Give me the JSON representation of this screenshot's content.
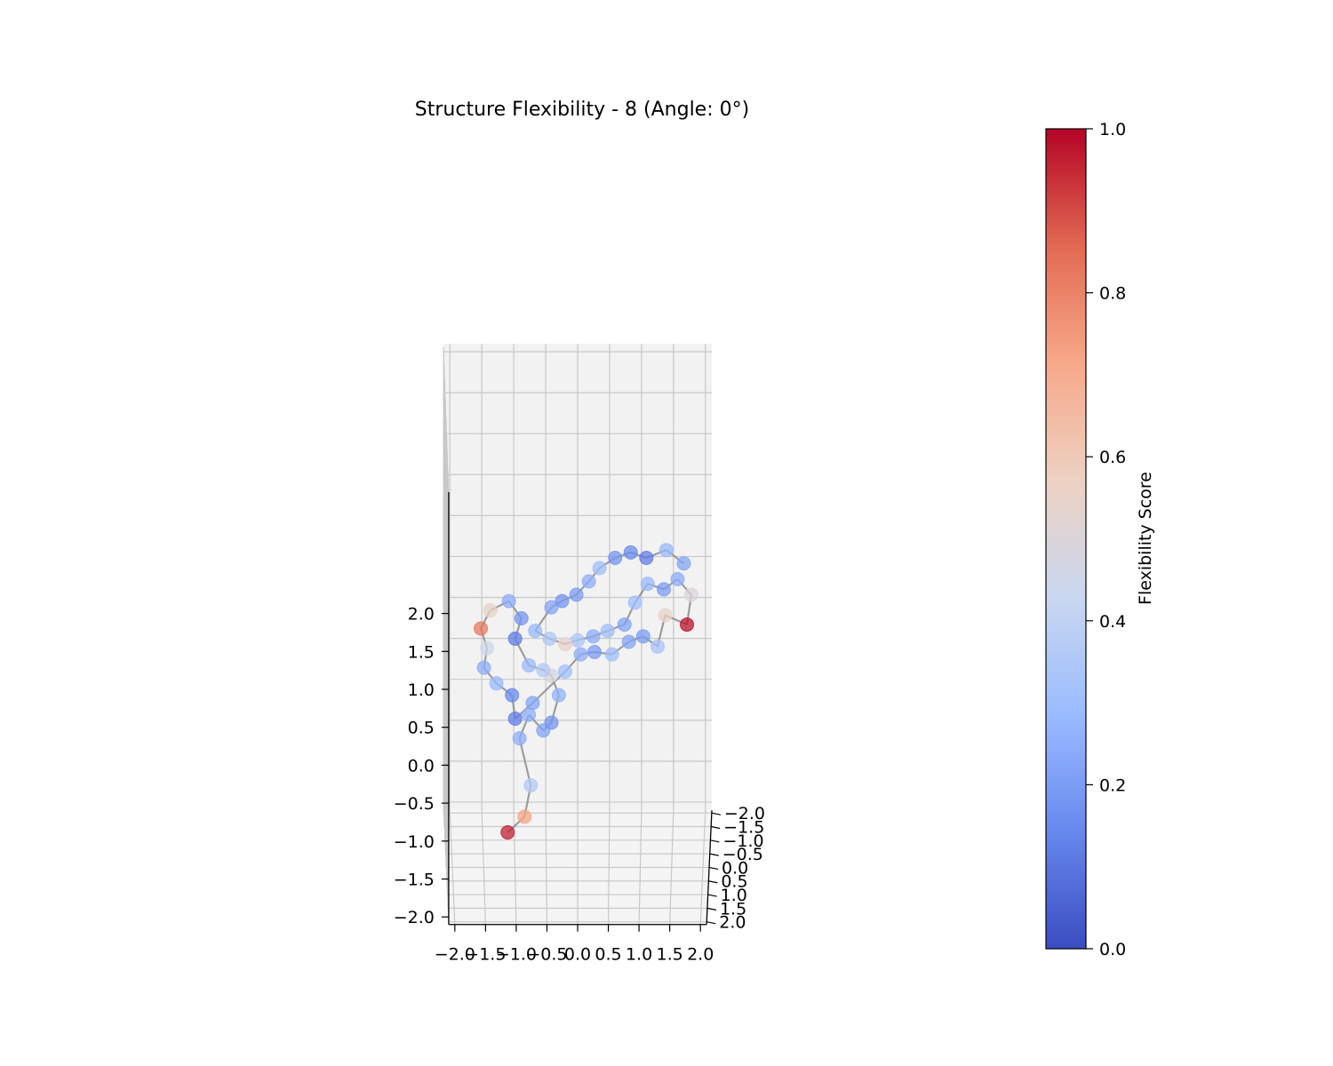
{
  "chart_data": {
    "type": "scatter",
    "projection": "3d",
    "title": "Structure Flexibility - 8 (Angle: 0°)",
    "xlabel": "",
    "ylabel": "",
    "zlabel": "",
    "xlim": [
      -2.0,
      2.0
    ],
    "ylim": [
      -2.0,
      2.0
    ],
    "zlim": [
      -2.0,
      2.0
    ],
    "x_ticks": [
      "−2.0",
      "−1.5",
      "−1.0",
      "−0.5",
      "0.0",
      "0.5",
      "1.0",
      "1.5",
      "2.0"
    ],
    "y_ticks": [
      "−2.0",
      "−1.5",
      "−1.0",
      "−0.5",
      "0.0",
      "0.5",
      "1.0",
      "1.5",
      "2.0"
    ],
    "z_ticks": [
      "−2.0",
      "−1.5",
      "−1.0",
      "−0.5",
      "0.0",
      "0.5",
      "1.0",
      "1.5",
      "2.0"
    ],
    "grid": true,
    "points_connected_in_sequence": true,
    "colormap": "coolwarm",
    "colorbar": {
      "label": "Flexibility Score",
      "range": [
        0.0,
        1.0
      ],
      "ticks": [
        "0.0",
        "0.2",
        "0.4",
        "0.6",
        "0.8",
        "1.0"
      ],
      "colors": [
        "#3b4cc0",
        "#6788ee",
        "#9abbff",
        "#c9d7f0",
        "#edd1c2",
        "#f7a889",
        "#e26952",
        "#b40426"
      ]
    },
    "points": [
      {
        "x": -1.12,
        "y": 0.3,
        "z": -1.55,
        "flex": 0.96
      },
      {
        "x": -0.85,
        "y": 0.3,
        "z": -1.35,
        "flex": 0.72
      },
      {
        "x": -0.75,
        "y": 0.3,
        "z": -0.95,
        "flex": 0.36
      },
      {
        "x": -0.93,
        "y": 0.3,
        "z": -0.35,
        "flex": 0.25
      },
      {
        "x": -0.78,
        "y": 0.3,
        "z": -0.05,
        "flex": 0.25
      },
      {
        "x": -0.55,
        "y": 0.3,
        "z": -0.25,
        "flex": 0.22
      },
      {
        "x": -0.42,
        "y": 0.3,
        "z": -0.15,
        "flex": 0.18
      },
      {
        "x": -0.3,
        "y": 0.3,
        "z": 0.2,
        "flex": 0.26
      },
      {
        "x": -0.42,
        "y": 0.3,
        "z": 0.45,
        "flex": 0.48
      },
      {
        "x": -0.55,
        "y": 0.3,
        "z": 0.52,
        "flex": 0.36
      },
      {
        "x": -0.78,
        "y": 0.3,
        "z": 0.58,
        "flex": 0.28
      },
      {
        "x": -1.0,
        "y": 0.3,
        "z": 0.92,
        "flex": 0.12
      },
      {
        "x": -0.9,
        "y": 0.3,
        "z": 1.18,
        "flex": 0.18
      },
      {
        "x": -1.1,
        "y": 0.3,
        "z": 1.4,
        "flex": 0.25
      },
      {
        "x": -1.4,
        "y": 0.3,
        "z": 1.28,
        "flex": 0.55
      },
      {
        "x": -1.55,
        "y": 0.3,
        "z": 1.05,
        "flex": 0.82
      },
      {
        "x": -1.45,
        "y": 0.3,
        "z": 0.8,
        "flex": 0.45
      },
      {
        "x": -1.5,
        "y": 0.3,
        "z": 0.55,
        "flex": 0.25
      },
      {
        "x": -1.3,
        "y": 0.3,
        "z": 0.35,
        "flex": 0.28
      },
      {
        "x": -1.05,
        "y": 0.3,
        "z": 0.2,
        "flex": 0.15
      },
      {
        "x": -1.0,
        "y": 0.3,
        "z": -0.1,
        "flex": 0.12
      },
      {
        "x": -0.72,
        "y": 0.3,
        "z": 0.1,
        "flex": 0.22
      },
      {
        "x": -0.2,
        "y": 0.3,
        "z": 0.5,
        "flex": 0.3
      },
      {
        "x": 0.05,
        "y": 0.3,
        "z": 0.72,
        "flex": 0.25
      },
      {
        "x": 0.27,
        "y": 0.3,
        "z": 0.75,
        "flex": 0.2
      },
      {
        "x": 0.55,
        "y": 0.3,
        "z": 0.72,
        "flex": 0.3
      },
      {
        "x": 0.82,
        "y": 0.3,
        "z": 0.88,
        "flex": 0.22
      },
      {
        "x": 1.05,
        "y": 0.3,
        "z": 0.95,
        "flex": 0.2
      },
      {
        "x": 1.28,
        "y": 0.3,
        "z": 0.82,
        "flex": 0.32
      },
      {
        "x": 1.4,
        "y": 0.3,
        "z": 1.22,
        "flex": 0.55
      },
      {
        "x": 1.75,
        "y": 0.3,
        "z": 1.1,
        "flex": 0.98
      },
      {
        "x": 1.82,
        "y": 0.3,
        "z": 1.48,
        "flex": 0.5
      },
      {
        "x": 1.6,
        "y": 0.3,
        "z": 1.68,
        "flex": 0.25
      },
      {
        "x": 1.38,
        "y": 0.3,
        "z": 1.55,
        "flex": 0.2
      },
      {
        "x": 1.12,
        "y": 0.3,
        "z": 1.62,
        "flex": 0.28
      },
      {
        "x": 0.92,
        "y": 0.3,
        "z": 1.38,
        "flex": 0.3
      },
      {
        "x": 0.75,
        "y": 0.3,
        "z": 1.1,
        "flex": 0.22
      },
      {
        "x": 0.48,
        "y": 0.3,
        "z": 1.02,
        "flex": 0.3
      },
      {
        "x": 0.25,
        "y": 0.3,
        "z": 0.95,
        "flex": 0.25
      },
      {
        "x": 0.0,
        "y": 0.3,
        "z": 0.9,
        "flex": 0.34
      },
      {
        "x": -0.2,
        "y": 0.3,
        "z": 0.85,
        "flex": 0.55
      },
      {
        "x": -0.45,
        "y": 0.3,
        "z": 0.92,
        "flex": 0.35
      },
      {
        "x": -0.68,
        "y": 0.3,
        "z": 1.02,
        "flex": 0.28
      },
      {
        "x": -0.42,
        "y": 0.3,
        "z": 1.32,
        "flex": 0.22
      },
      {
        "x": -0.25,
        "y": 0.3,
        "z": 1.4,
        "flex": 0.18
      },
      {
        "x": -0.02,
        "y": 0.3,
        "z": 1.48,
        "flex": 0.2
      },
      {
        "x": 0.18,
        "y": 0.3,
        "z": 1.65,
        "flex": 0.25
      },
      {
        "x": 0.35,
        "y": 0.3,
        "z": 1.82,
        "flex": 0.3
      },
      {
        "x": 0.6,
        "y": 0.3,
        "z": 1.95,
        "flex": 0.18
      },
      {
        "x": 0.85,
        "y": 0.3,
        "z": 2.02,
        "flex": 0.15
      },
      {
        "x": 1.1,
        "y": 0.3,
        "z": 1.95,
        "flex": 0.12
      },
      {
        "x": 1.42,
        "y": 0.3,
        "z": 2.05,
        "flex": 0.28
      },
      {
        "x": 1.7,
        "y": 0.3,
        "z": 1.88,
        "flex": 0.22
      }
    ]
  }
}
